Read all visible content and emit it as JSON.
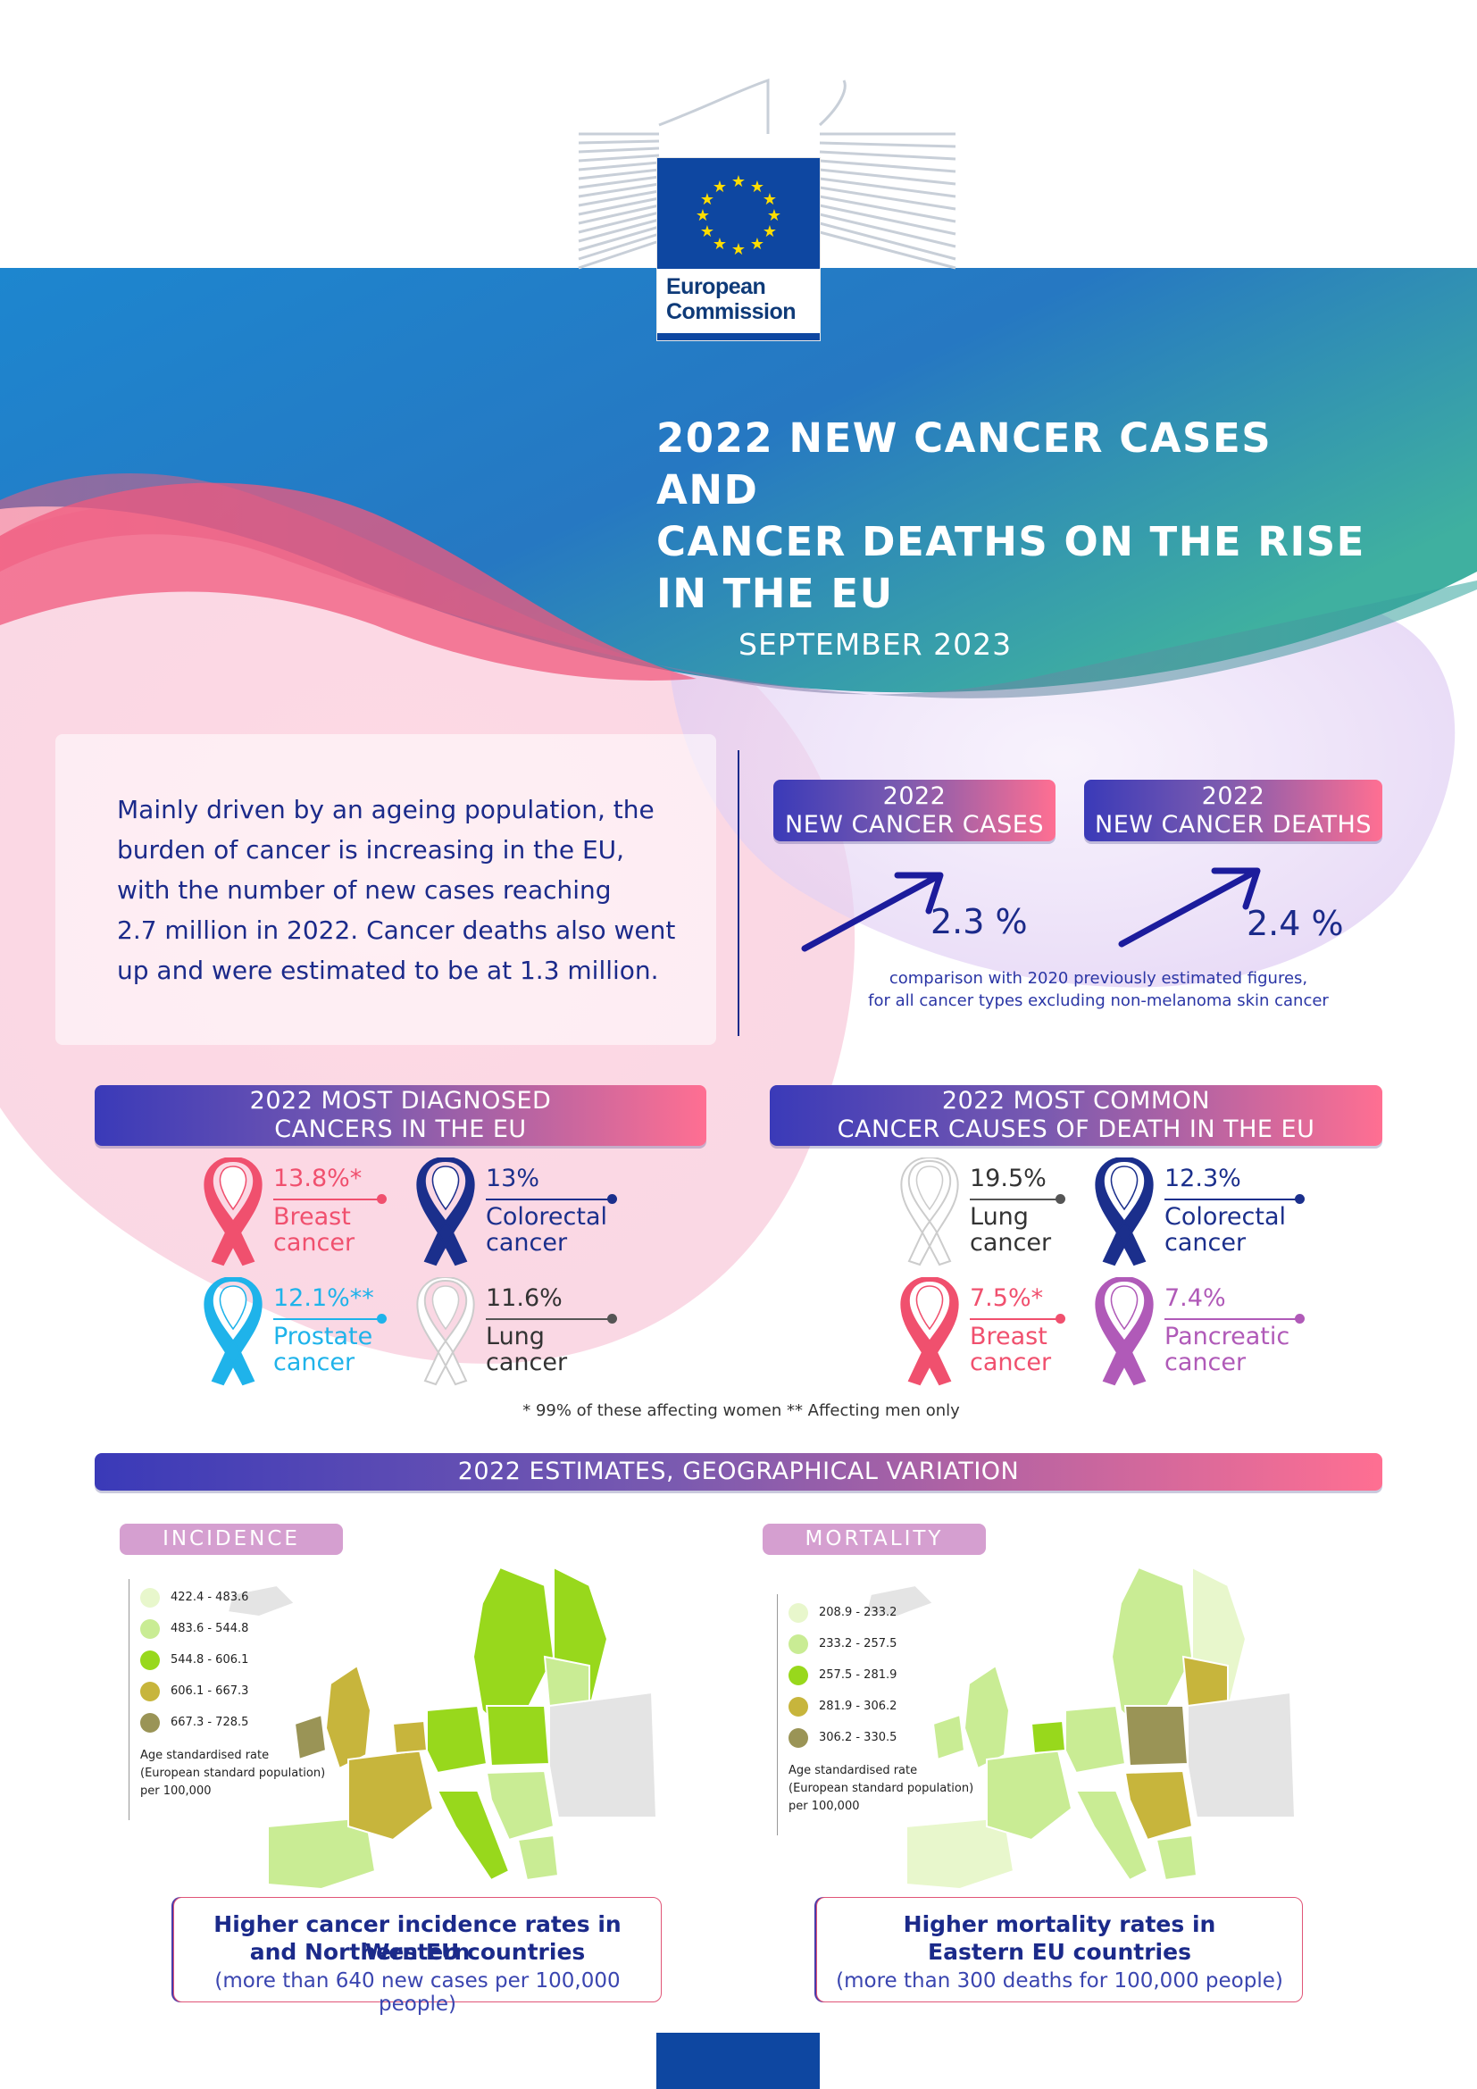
{
  "header": {
    "logo_line1": "European",
    "logo_line2": "Commission",
    "title_lines": [
      "2022 NEW CANCER CASES AND",
      "CANCER DEATHS ON THE RISE",
      "IN THE EU"
    ],
    "date": "SEPTEMBER 2023"
  },
  "intro": {
    "lines": [
      "Mainly driven by an ageing population, the",
      "burden of cancer is increasing in the EU,",
      "with the number of new cases reaching",
      "2.7 million in 2022. Cancer deaths also went",
      "up and were estimated to be at 1.3 million."
    ]
  },
  "rise": {
    "cases": {
      "year": "2022",
      "label": "NEW CANCER CASES",
      "value": "2.3 %"
    },
    "deaths": {
      "year": "2022",
      "label": "NEW CANCER DEATHS",
      "value": "2.4 %"
    },
    "note_lines": [
      "comparison with 2020 previously estimated figures,",
      "for all cancer types excluding non-melanoma skin cancer"
    ]
  },
  "diagnosed": {
    "title_lines": [
      "2022 MOST DIAGNOSED",
      "CANCERS IN THE EU"
    ],
    "items": [
      {
        "pct": "13.8%*",
        "name1": "Breast",
        "name2": "cancer",
        "color": "#f0506e"
      },
      {
        "pct": "13%",
        "name1": "Colorectal",
        "name2": "cancer",
        "color": "#1b2f8c"
      },
      {
        "pct": "12.1%**",
        "name1": "Prostate",
        "name2": "cancer",
        "color": "#1fb3ea"
      },
      {
        "pct": "11.6%",
        "name1": "Lung",
        "name2": "cancer",
        "color": "#444444"
      }
    ]
  },
  "deaths": {
    "title_lines": [
      "2022 MOST COMMON",
      "CANCER CAUSES OF DEATH IN THE EU"
    ],
    "items": [
      {
        "pct": "19.5%",
        "name1": "Lung",
        "name2": "cancer",
        "color": "#444444"
      },
      {
        "pct": "12.3%",
        "name1": "Colorectal",
        "name2": "cancer",
        "color": "#1b2f8c"
      },
      {
        "pct": "7.5%*",
        "name1": "Breast",
        "name2": "cancer",
        "color": "#f0506e"
      },
      {
        "pct": "7.4%",
        "name1": "Pancreatic",
        "name2": "cancer",
        "color": "#b05ab8"
      }
    ]
  },
  "footnote": "* 99% of these affecting women ** Affecting men only",
  "geo": {
    "title": "2022 ESTIMATES, GEOGRAPHICAL VARIATION",
    "incidence": {
      "tag": "INCIDENCE",
      "legend": [
        "422.4 - 483.6",
        "483.6 - 544.8",
        "544.8 - 606.1",
        "606.1 - 667.3",
        "667.3 - 728.5"
      ],
      "note_lines": [
        "Age standardised rate",
        "(European standard population)",
        "per 100,000"
      ],
      "callout_lines": [
        "Higher cancer incidence rates in Western",
        "and Northern EU countries"
      ],
      "callout_sub": "(more than 640 new cases per 100,000 people)"
    },
    "mortality": {
      "tag": "MORTALITY",
      "legend": [
        "208.9 - 233.2",
        "233.2 - 257.5",
        "257.5 - 281.9",
        "281.9 - 306.2",
        "306.2 - 330.5"
      ],
      "note_lines": [
        "Age standardised rate",
        "(European standard population)",
        "per 100,000"
      ],
      "callout_lines": [
        "Higher mortality rates in",
        "Eastern EU countries"
      ],
      "callout_sub": "(more than 300 deaths for 100,000 people)"
    },
    "legend_colors": [
      "#e8f7cc",
      "#c9ec94",
      "#98d81c",
      "#c7b53c",
      "#9a9456"
    ]
  },
  "colors": {
    "eu_blue": "#0e47a1",
    "navy": "#1b2a8a",
    "pink": "#f0506e"
  }
}
